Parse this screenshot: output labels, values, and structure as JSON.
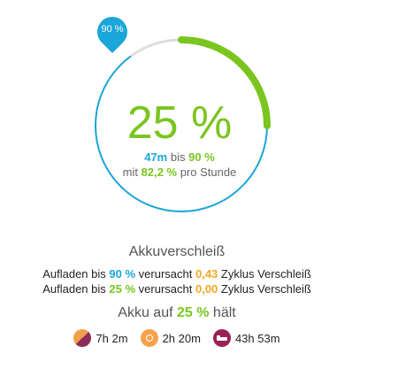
{
  "ring": {
    "target_label": "90 %",
    "target_fraction": 0.9,
    "current_fraction": 0.25,
    "colors": {
      "track": "#1aa6d9",
      "remaining": "#dddddd",
      "progress": "#7ac51f"
    }
  },
  "status": {
    "percent": "25 %",
    "time": "47m",
    "until": "bis",
    "target": "90 %",
    "rate_prefix": "mit",
    "rate": "82,2 %",
    "rate_suffix": "pro Stunde"
  },
  "wear": {
    "title": "Akkuverschleiß",
    "rows": [
      {
        "prefix": "Aufladen bis",
        "pct": "90 %",
        "mid": "verursacht",
        "cycles": "0,43",
        "suffix": "Zyklus Verschleiß"
      },
      {
        "prefix": "Aufladen bis",
        "pct": "25 %",
        "mid": "verursacht",
        "cycles": "0,00",
        "suffix": "Zyklus Verschleiß"
      }
    ]
  },
  "duration": {
    "title_prefix": "Akku auf",
    "pct": "25 %",
    "title_suffix": "hält",
    "items": [
      {
        "icon": "mixed-usage-icon",
        "value": "7h 2m"
      },
      {
        "icon": "screen-on-sun-icon",
        "value": "2h 20m"
      },
      {
        "icon": "sleep-bed-icon",
        "value": "43h 53m"
      }
    ]
  }
}
